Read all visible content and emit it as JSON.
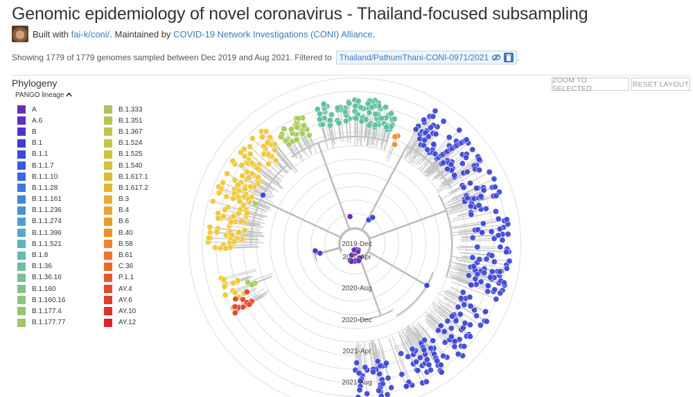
{
  "header": {
    "title": "Genomic epidemiology of novel coronavirus - Thailand-focused subsampling",
    "byline_prefix": "Built with",
    "byline_link1": "fai-k/coni/",
    "byline_middle": ". Maintained by",
    "byline_link2": "COVID-19 Network Investigations (CONI) Alliance",
    "byline_suffix": "."
  },
  "summary": {
    "text": "Showing 1779 of 1779 genomes sampled between Dec 2019 and Aug 2021. Filtered to",
    "filter": "Thailand/PathumThani-CONI-0971/2021",
    "suffix": "."
  },
  "panel": {
    "title": "Phylogeny",
    "zoom_button": "ZOOM TO SELECTED",
    "reset_button": "RESET LAYOUT",
    "legend_title": "PANGO lineage"
  },
  "legend": {
    "col1": [
      {
        "label": "A",
        "color": "#6a2fb8"
      },
      {
        "label": "A.6",
        "color": "#5a31c4"
      },
      {
        "label": "B",
        "color": "#4b35cf"
      },
      {
        "label": "B.1",
        "color": "#3e3dd6"
      },
      {
        "label": "B.1.1",
        "color": "#3a4bdc"
      },
      {
        "label": "B.1.1.7",
        "color": "#3a5ade"
      },
      {
        "label": "B.1.1.10",
        "color": "#3b69df"
      },
      {
        "label": "B.1.1.28",
        "color": "#3e78df"
      },
      {
        "label": "B.1.1.161",
        "color": "#4286dd"
      },
      {
        "label": "B.1.1.236",
        "color": "#4793d8"
      },
      {
        "label": "B.1.1.274",
        "color": "#4e9fd1"
      },
      {
        "label": "B.1.1.396",
        "color": "#56a9c8"
      },
      {
        "label": "B.1.1.521",
        "color": "#5fb1bd"
      },
      {
        "label": "B.1.8",
        "color": "#68b8b1"
      },
      {
        "label": "B.1.36",
        "color": "#71bca5"
      },
      {
        "label": "B.1.36.16",
        "color": "#7bbf98"
      },
      {
        "label": "B.1.160",
        "color": "#85c18b"
      },
      {
        "label": "B.1.160.16",
        "color": "#8fc27e"
      },
      {
        "label": "B.1.177.4",
        "color": "#9ac371"
      },
      {
        "label": "B.1.177.77",
        "color": "#a4c465"
      }
    ],
    "col2": [
      {
        "label": "B.1.333",
        "color": "#a9c55f"
      },
      {
        "label": "B.1.351",
        "color": "#b3c656"
      },
      {
        "label": "B.1.367",
        "color": "#bdc64e"
      },
      {
        "label": "B.1.524",
        "color": "#c6c547"
      },
      {
        "label": "B.1.525",
        "color": "#cfc341"
      },
      {
        "label": "B.1.540",
        "color": "#d8c03c"
      },
      {
        "label": "B.1.617.1",
        "color": "#dfbb38"
      },
      {
        "label": "B.1.617.2",
        "color": "#e5b535"
      },
      {
        "label": "B.3",
        "color": "#e9ad33"
      },
      {
        "label": "B.4",
        "color": "#eca431"
      },
      {
        "label": "B.6",
        "color": "#ee9a30"
      },
      {
        "label": "B.40",
        "color": "#ef8f2f"
      },
      {
        "label": "B.58",
        "color": "#ef832e"
      },
      {
        "label": "B.61",
        "color": "#ee762d"
      },
      {
        "label": "C.36",
        "color": "#ec682c"
      },
      {
        "label": "P.1.1",
        "color": "#e95a2b"
      },
      {
        "label": "AY.4",
        "color": "#e54c2a"
      },
      {
        "label": "AY.6",
        "color": "#e13f29"
      },
      {
        "label": "AY.10",
        "color": "#dc3328"
      },
      {
        "label": "AY.12",
        "color": "#d72827"
      }
    ]
  },
  "tree": {
    "ticks": [
      "2019-Dec",
      "2020-Apr",
      "2020-Aug",
      "2020-Dec",
      "2021-Apr",
      "2021-Aug"
    ],
    "clade_colors": {
      "teal": "#5fbfa0",
      "green": "#a8cc55",
      "yellow": "#efc93b",
      "red": "#e2462a",
      "orange": "#ef8f2f",
      "blue": "#3f49d6",
      "purple": "#6a2fb8"
    }
  }
}
